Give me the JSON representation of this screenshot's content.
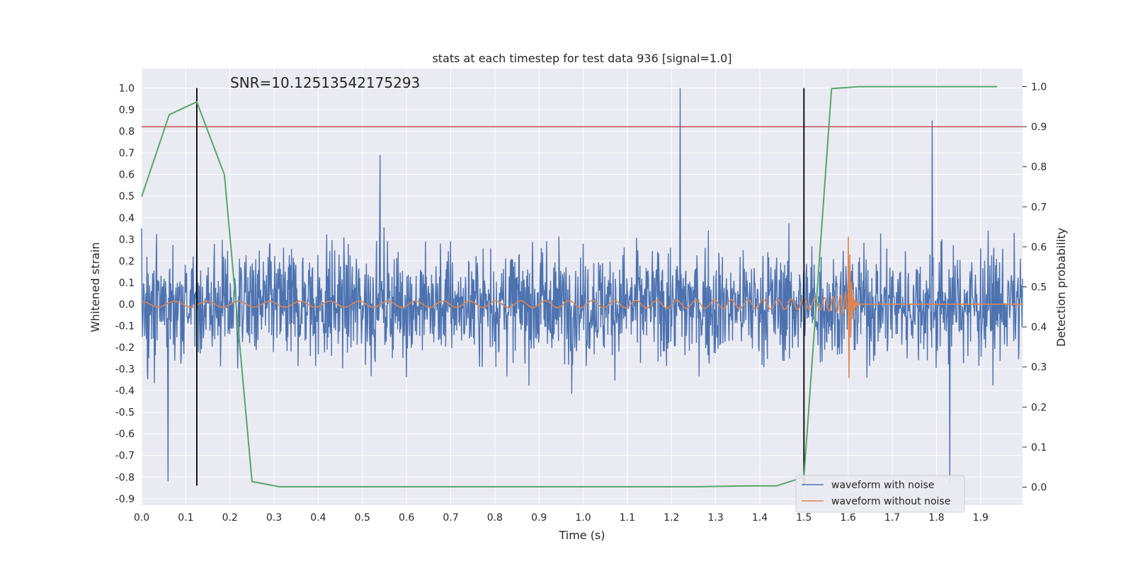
{
  "chart_data": {
    "type": "line",
    "title": "stats at each timestep for test data 936 [signal=1.0]",
    "xlabel": "Time (s)",
    "ylabel_left": "Whitened strain",
    "ylabel_right": "Detection probability",
    "annotation": "SNR=10.12513542175293",
    "xlim": [
      0.0,
      1.995
    ],
    "ylim_left": [
      -0.93,
      1.09
    ],
    "ylim_right": [
      -0.045,
      1.045
    ],
    "x_ticks": [
      "0.0",
      "0.1",
      "0.2",
      "0.3",
      "0.4",
      "0.5",
      "0.6",
      "0.7",
      "0.8",
      "0.9",
      "1.0",
      "1.1",
      "1.2",
      "1.3",
      "1.4",
      "1.5",
      "1.6",
      "1.7",
      "1.8",
      "1.9"
    ],
    "y_left_ticks": [
      "1.0",
      "0.9",
      "0.8",
      "0.7",
      "0.6",
      "0.5",
      "0.4",
      "0.3",
      "0.2",
      "0.1",
      "0.0",
      "-0.1",
      "-0.2",
      "-0.3",
      "-0.4",
      "-0.5",
      "-0.6",
      "-0.7",
      "-0.8",
      "-0.9"
    ],
    "y_right_ticks": [
      "1.0",
      "0.9",
      "0.8",
      "0.7",
      "0.6",
      "0.5",
      "0.4",
      "0.3",
      "0.2",
      "0.1",
      "0.0"
    ],
    "grid": true,
    "legend_position": "bottom-right",
    "colors": {
      "background": "#eaeaf2",
      "noise": "#4c72b0",
      "clean": "#dd8452",
      "probability": "#55a868",
      "threshold": "#c44e52",
      "markers": "#000000"
    },
    "series": [
      {
        "name": "waveform with noise",
        "axis": "left",
        "x_start": 0.0,
        "x_end": 1.995,
        "y_range": [
          -0.83,
          1.0
        ],
        "notable_peaks": [
          {
            "x": 1.22,
            "y": 1.0
          },
          {
            "x": 1.79,
            "y": 0.85
          },
          {
            "x": 0.54,
            "y": 0.69
          },
          {
            "x": 1.83,
            "y": -0.83
          },
          {
            "x": 0.06,
            "y": -0.82
          }
        ]
      },
      {
        "name": "waveform without noise",
        "axis": "left",
        "x_start": 0.0,
        "x_end": 1.995,
        "merger_time": 1.6,
        "peak_amplitude": 0.51,
        "min_amplitude": -0.43,
        "initial_amplitude": 0.013
      },
      {
        "axis": "right",
        "x": [
          0.0,
          0.0625,
          0.125,
          0.1875,
          0.25,
          0.3125,
          0.375,
          0.4375,
          0.5,
          0.5625,
          0.625,
          0.6875,
          0.75,
          0.8125,
          0.875,
          0.9375,
          1.0,
          1.0625,
          1.125,
          1.1875,
          1.25,
          1.3125,
          1.375,
          1.4375,
          1.5,
          1.5625,
          1.625,
          1.6875,
          1.75,
          1.8125,
          1.875,
          1.9375
        ],
        "y": [
          0.725,
          0.93,
          0.962,
          0.78,
          0.014,
          0.001,
          0.001,
          0.001,
          0.001,
          0.001,
          0.001,
          0.001,
          0.001,
          0.001,
          0.001,
          0.001,
          0.001,
          0.001,
          0.001,
          0.001,
          0.001,
          0.002,
          0.003,
          0.003,
          0.025,
          0.995,
          1.0,
          1.0,
          1.0,
          1.0,
          1.0,
          1.0
        ]
      }
    ],
    "threshold_right": 0.9,
    "marker_lines_x": [
      0.125,
      1.5
    ],
    "marker_lines_y_left": [
      -0.84,
      1.0
    ]
  }
}
